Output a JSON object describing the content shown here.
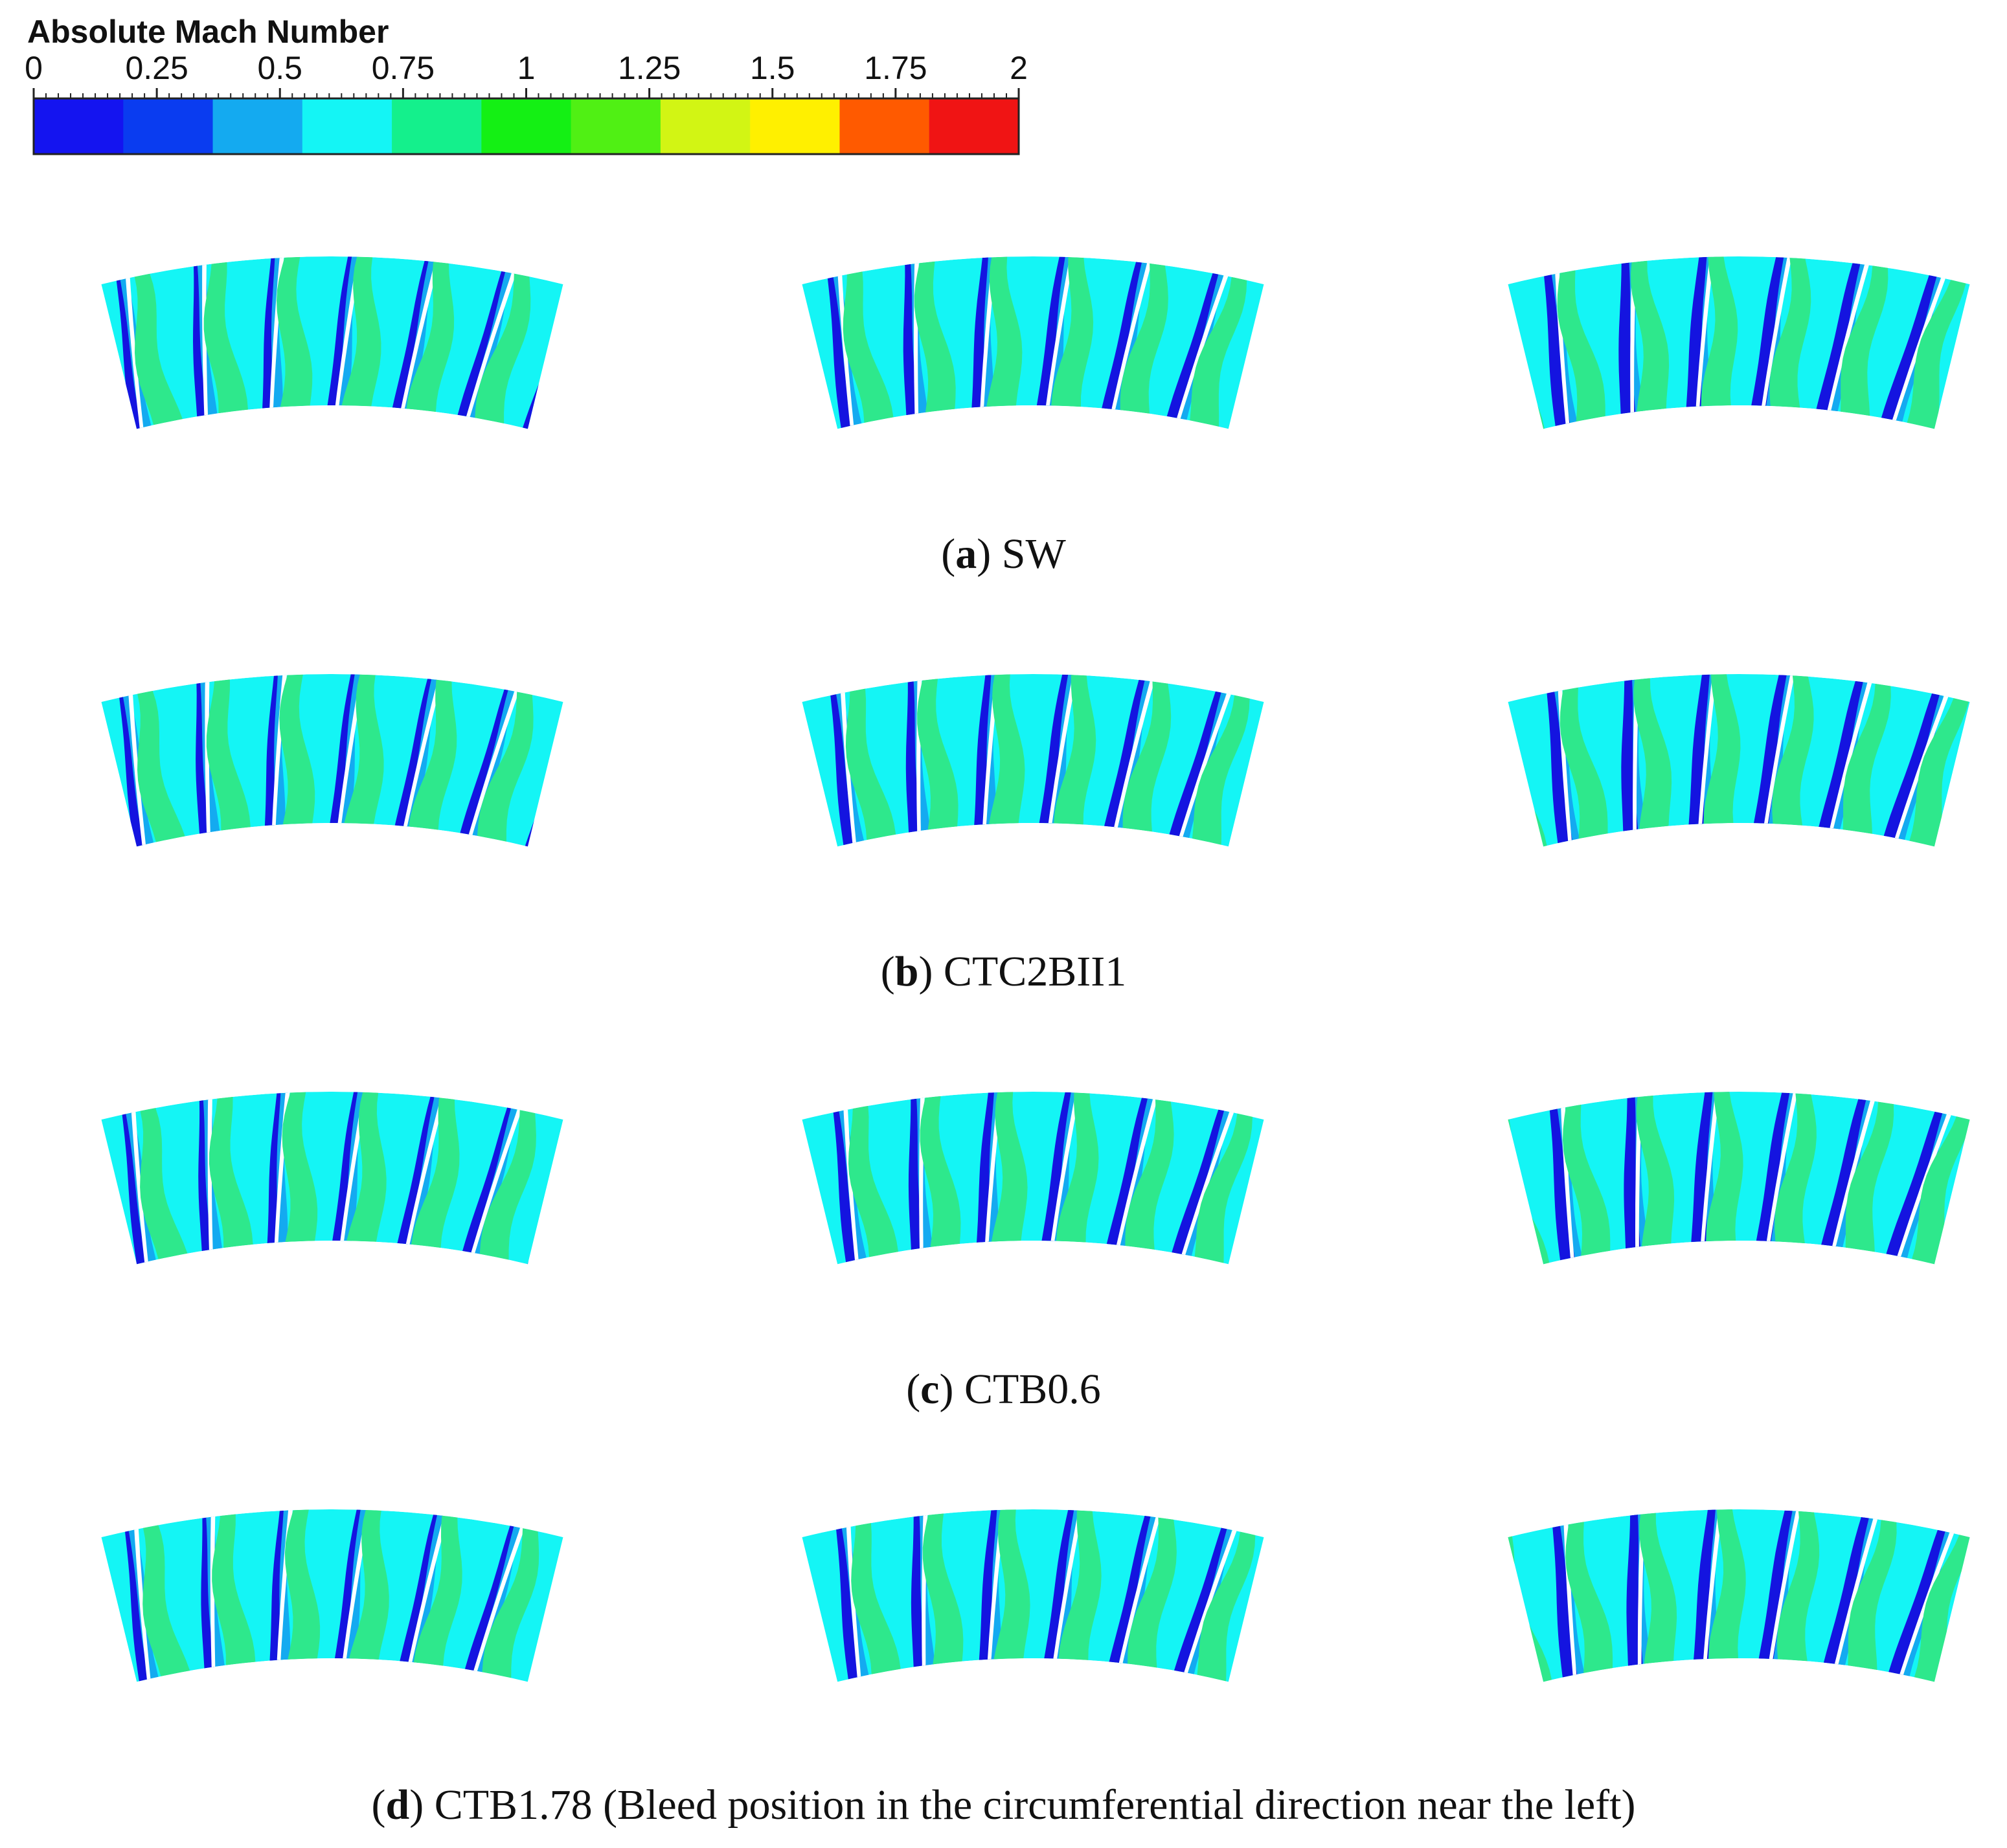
{
  "legend": {
    "title": "Absolute Mach Number",
    "ticks": [
      "0",
      "0.25",
      "0.5",
      "0.75",
      "1",
      "1.25",
      "1.5",
      "1.75",
      "2"
    ],
    "colors": [
      "#1414f0",
      "#0a3cf0",
      "#14aaf0",
      "#14f5f5",
      "#14f08c",
      "#14f014",
      "#50f014",
      "#d2f514",
      "#fff000",
      "#ff5a00",
      "#f01414"
    ]
  },
  "field_colors": {
    "background": "#14f5f5",
    "wake": "#2ee88c",
    "band": "#14aaf0",
    "core": "#1414e0",
    "blade": "#ffffff"
  },
  "panels": [
    {
      "letter": "a",
      "name": "SW",
      "offset": 0
    },
    {
      "letter": "b",
      "name": "CTC2BII1",
      "offset": 0.15
    },
    {
      "letter": "c",
      "name": "CTB0.6",
      "offset": 0.3
    },
    {
      "letter": "d",
      "name": "CTB1.78 (Bleed position in the circumferential direction near the left)",
      "offset": 0.45
    }
  ]
}
